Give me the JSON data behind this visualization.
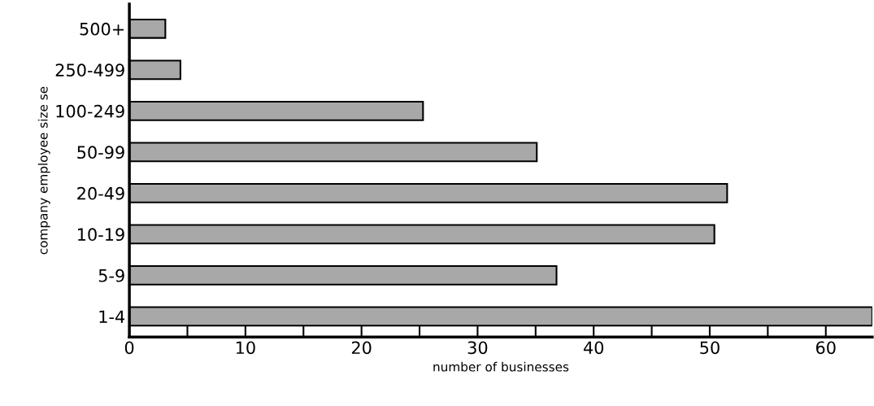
{
  "chart_data": {
    "type": "bar",
    "orientation": "horizontal",
    "xlabel": "number of businesses",
    "ylabel": "company employee size se",
    "categories": [
      "500+",
      "250-499",
      "100-249",
      "50-99",
      "20-49",
      "10-19",
      "5-9",
      "1-4"
    ],
    "values": [
      3.1,
      4.4,
      25.3,
      35.1,
      51.5,
      50.4,
      36.8,
      64
    ],
    "color": "#a8a8a8",
    "xlim": [
      0,
      64
    ],
    "xticks": [
      0,
      {
        "value": 5,
        "label": null
      },
      10,
      {
        "value": 15,
        "label": null
      },
      20,
      {
        "value": 25,
        "label": null
      },
      30,
      {
        "value": 35,
        "label": null
      },
      40,
      {
        "value": 45,
        "label": null
      },
      50,
      {
        "value": 55,
        "label": null
      },
      60
    ],
    "grid": false,
    "legend": false
  }
}
